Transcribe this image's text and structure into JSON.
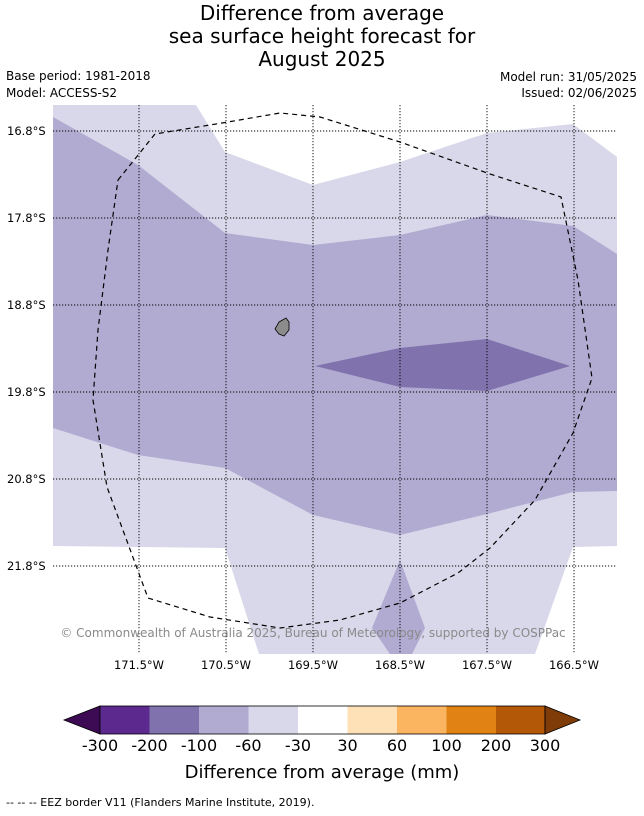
{
  "title": {
    "line1": "Difference from average",
    "line2": "sea surface height forecast for",
    "line3": "August 2025"
  },
  "meta": {
    "base_period": "Base period: 1981-2018",
    "model": "Model: ACCESS-S2",
    "model_run": "Model run: 31/05/2025",
    "issued": "Issued: 02/06/2025"
  },
  "map": {
    "lat_labels": [
      "16.8°S",
      "17.8°S",
      "18.8°S",
      "19.8°S",
      "20.8°S",
      "21.8°S"
    ],
    "lon_labels": [
      "171.5°W",
      "170.5°W",
      "169.5°W",
      "168.5°W",
      "167.5°W",
      "166.5°W"
    ],
    "copyright": "© Commonwealth of Australia 2025, Bureau of Meteorology, supported by COSPPac",
    "colors": {
      "band_-200_-100": "#7f72ad",
      "band_-100_-60": "#b1aad1",
      "band_-60_-30": "#d8d8ea",
      "land": "#8c8c8c",
      "eez": "#000000"
    }
  },
  "colorbar": {
    "title": "Difference from average (mm)",
    "tick_labels": [
      "-300",
      "-200",
      "-100",
      "-60",
      "-30",
      "30",
      "60",
      "100",
      "200",
      "300"
    ],
    "colors": [
      "#3d0a54",
      "#5c2a8e",
      "#7f72ad",
      "#b1aad1",
      "#d8d8ea",
      "#ffffff",
      "#fee1b7",
      "#fbb460",
      "#e08214",
      "#b35806",
      "#7f3b08"
    ]
  },
  "footer": {
    "text": "--  --  -- EEZ border V11 (Flanders Marine Institute, 2019)."
  }
}
